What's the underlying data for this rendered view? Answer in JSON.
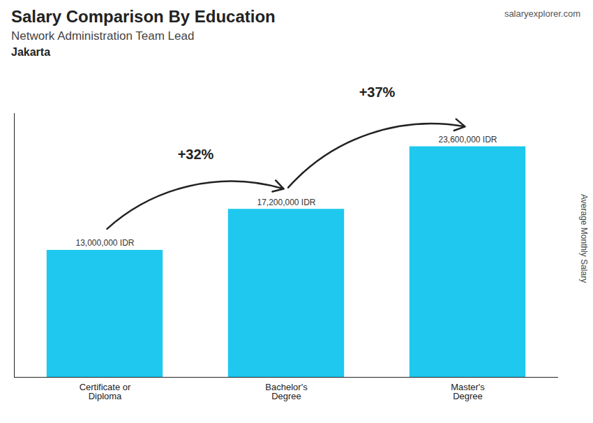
{
  "chart_data": {
    "type": "bar",
    "title": "Salary Comparison By Education",
    "subtitle": "Network Administration Team Lead",
    "city": "Jakarta",
    "caption": "salaryexplorer.com",
    "ylabel": "Average Monthly Salary",
    "categories": [
      "Certificate or\nDiploma",
      "Bachelor's\nDegree",
      "Master's\nDegree"
    ],
    "values": [
      13000000,
      17200000,
      23600000
    ],
    "value_labels": [
      "13,000,000 IDR",
      "17,200,000 IDR",
      "23,600,000 IDR"
    ],
    "data_labels": true,
    "annotations": [
      "+32%",
      "+37%"
    ],
    "color": "#1EC8EE",
    "ylim": [
      0,
      27000000
    ],
    "tick_labels": "x",
    "grid": false
  }
}
